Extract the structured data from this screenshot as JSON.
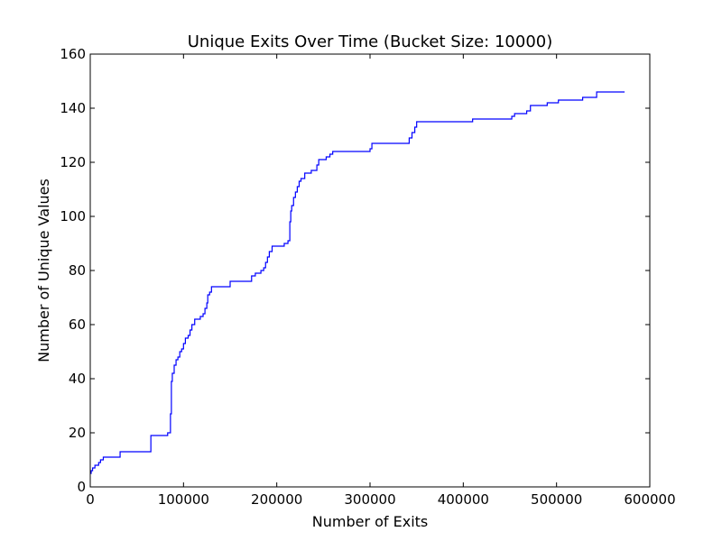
{
  "chart_data": {
    "type": "line",
    "title": "Unique Exits Over Time (Bucket Size: 10000)",
    "xlabel": "Number of Exits",
    "ylabel": "Number of Unique Values",
    "xlim": [
      0,
      600000
    ],
    "ylim": [
      0,
      160
    ],
    "xticks": [
      0,
      100000,
      200000,
      300000,
      400000,
      500000,
      600000
    ],
    "xtick_labels": [
      "0",
      "100000",
      "200000",
      "300000",
      "400000",
      "500000",
      "600000"
    ],
    "yticks": [
      0,
      20,
      40,
      60,
      80,
      100,
      120,
      140,
      160
    ],
    "ytick_labels": [
      "0",
      "20",
      "40",
      "60",
      "80",
      "100",
      "120",
      "140",
      "160"
    ],
    "grid": false,
    "line_color": "#0000ff",
    "step": true,
    "series": [
      {
        "points": [
          [
            0,
            5
          ],
          [
            1000,
            6
          ],
          [
            2500,
            7
          ],
          [
            5000,
            8
          ],
          [
            9000,
            9
          ],
          [
            11000,
            10
          ],
          [
            14000,
            11
          ],
          [
            32000,
            13
          ],
          [
            65000,
            19
          ],
          [
            83000,
            20
          ],
          [
            86000,
            27
          ],
          [
            87000,
            39
          ],
          [
            88000,
            42
          ],
          [
            90000,
            45
          ],
          [
            92000,
            47
          ],
          [
            94000,
            48
          ],
          [
            96000,
            50
          ],
          [
            98000,
            51
          ],
          [
            100000,
            53
          ],
          [
            102000,
            55
          ],
          [
            105000,
            56
          ],
          [
            107000,
            58
          ],
          [
            109000,
            60
          ],
          [
            112000,
            62
          ],
          [
            118000,
            63
          ],
          [
            121000,
            64
          ],
          [
            123000,
            66
          ],
          [
            125000,
            68
          ],
          [
            126000,
            71
          ],
          [
            128000,
            72
          ],
          [
            130000,
            74
          ],
          [
            150000,
            76
          ],
          [
            173000,
            78
          ],
          [
            177000,
            79
          ],
          [
            183000,
            80
          ],
          [
            186000,
            81
          ],
          [
            188000,
            83
          ],
          [
            190000,
            85
          ],
          [
            192000,
            87
          ],
          [
            195000,
            89
          ],
          [
            208000,
            90
          ],
          [
            212000,
            91
          ],
          [
            214000,
            98
          ],
          [
            215000,
            102
          ],
          [
            216000,
            104
          ],
          [
            218000,
            107
          ],
          [
            220000,
            109
          ],
          [
            222000,
            111
          ],
          [
            224000,
            113
          ],
          [
            226000,
            114
          ],
          [
            230000,
            116
          ],
          [
            237000,
            117
          ],
          [
            243000,
            119
          ],
          [
            245000,
            121
          ],
          [
            253000,
            122
          ],
          [
            257000,
            123
          ],
          [
            260000,
            124
          ],
          [
            300000,
            125
          ],
          [
            302000,
            127
          ],
          [
            340000,
            127
          ],
          [
            342000,
            129
          ],
          [
            345000,
            131
          ],
          [
            348000,
            133
          ],
          [
            350000,
            135
          ],
          [
            410000,
            136
          ],
          [
            452000,
            137
          ],
          [
            455000,
            138
          ],
          [
            468000,
            139
          ],
          [
            472000,
            141
          ],
          [
            490000,
            142
          ],
          [
            502000,
            143
          ],
          [
            528000,
            144
          ],
          [
            543000,
            146
          ],
          [
            573000,
            146
          ]
        ]
      }
    ]
  }
}
